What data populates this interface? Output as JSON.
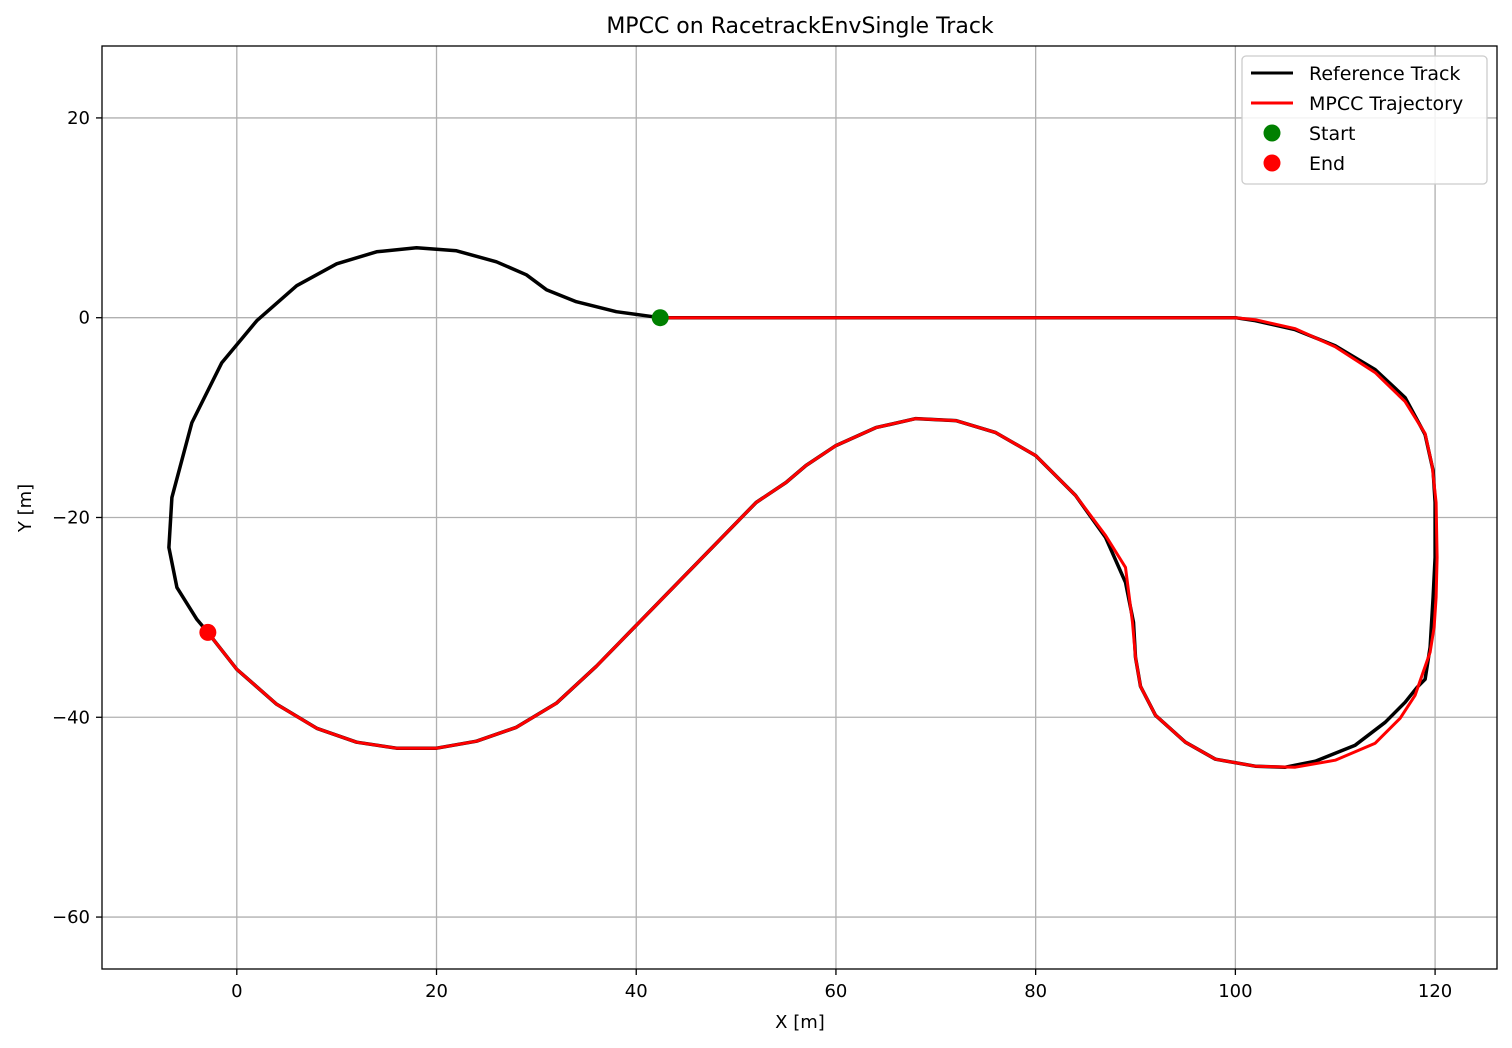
{
  "chart_data": {
    "type": "line",
    "title": "MPCC on RacetrackEnvSingle Track",
    "xlabel": "X [m]",
    "ylabel": "Y [m]",
    "xlim": [
      -13.5,
      126.2
    ],
    "ylim": [
      -65.2,
      27.2
    ],
    "xticks": [
      0,
      20,
      40,
      60,
      80,
      100,
      120
    ],
    "yticks": [
      20,
      0,
      -20,
      -40,
      -60
    ],
    "grid": true,
    "legend_position": "top-right",
    "colors": {
      "reference": "#000000",
      "trajectory": "#ff0000",
      "start": "#008000",
      "end": "#ff0000",
      "grid": "#b0b0b0"
    },
    "series": [
      {
        "name": "Reference Track",
        "style": "line",
        "x": [
          42.4,
          38,
          34,
          31,
          29,
          26,
          22,
          18,
          14,
          10,
          6,
          2,
          -1.5,
          -4.5,
          -6.5,
          -6.8,
          -6,
          -4,
          -2.9,
          0,
          4,
          8,
          12,
          16,
          20,
          24,
          28,
          32,
          36,
          40,
          44,
          48,
          52,
          55,
          57,
          60,
          64,
          68,
          72,
          76,
          80,
          84,
          87,
          89,
          89.8,
          90,
          90.5,
          92,
          95,
          98,
          102,
          105,
          108,
          112,
          115,
          117,
          118.2,
          119,
          119.5,
          119.8,
          120,
          120,
          119.8,
          119,
          117,
          114,
          110,
          106,
          102,
          100,
          90,
          80,
          70,
          60,
          50,
          42.4
        ],
        "y": [
          0,
          0.6,
          1.6,
          2.8,
          4.3,
          5.6,
          6.7,
          7,
          6.6,
          5.4,
          3.2,
          -0.3,
          -4.5,
          -10.5,
          -18,
          -23,
          -27,
          -30.2,
          -31.5,
          -35.2,
          -38.7,
          -41.1,
          -42.5,
          -43.1,
          -43.1,
          -42.4,
          -41,
          -38.6,
          -34.9,
          -30.8,
          -26.7,
          -22.6,
          -18.5,
          -16.5,
          -14.8,
          -12.8,
          -11,
          -10.1,
          -10.3,
          -11.5,
          -13.8,
          -17.8,
          -22,
          -26.5,
          -30.5,
          -34,
          -36.9,
          -39.8,
          -42.5,
          -44.2,
          -44.9,
          -45,
          -44.4,
          -42.8,
          -40.5,
          -38.5,
          -37,
          -36.2,
          -33,
          -28,
          -24,
          -18.5,
          -15.3,
          -11.7,
          -8,
          -5.2,
          -2.8,
          -1.2,
          -0.3,
          0,
          0,
          0,
          0,
          0,
          0,
          0
        ]
      },
      {
        "name": "MPCC Trajectory",
        "style": "line",
        "x": [
          42.4,
          50,
          60,
          70,
          80,
          90,
          100,
          102,
          106,
          110,
          114,
          117,
          119,
          119.7,
          120.1,
          120.2,
          120.1,
          119.9,
          119.5,
          118.8,
          118,
          116.5,
          114,
          110,
          106,
          102,
          98,
          95,
          92,
          90.5,
          90,
          89.7,
          89,
          87,
          84,
          80,
          76,
          72,
          68,
          64,
          60,
          57,
          55,
          52,
          48,
          44,
          40,
          36,
          32,
          28,
          24,
          20,
          16,
          12,
          8,
          4,
          0,
          -2.9
        ],
        "y": [
          0,
          0,
          0,
          0,
          0,
          0,
          0,
          -0.2,
          -1.1,
          -2.9,
          -5.5,
          -8.4,
          -11.6,
          -14.8,
          -18.5,
          -24,
          -28,
          -31,
          -33.5,
          -35.5,
          -37.8,
          -40.1,
          -42.6,
          -44.3,
          -45,
          -44.9,
          -44.2,
          -42.5,
          -39.8,
          -36.9,
          -34,
          -30.5,
          -25,
          -21.8,
          -17.8,
          -13.8,
          -11.5,
          -10.3,
          -10.1,
          -11,
          -12.8,
          -14.8,
          -16.5,
          -18.5,
          -22.6,
          -26.7,
          -30.8,
          -34.9,
          -38.6,
          -41,
          -42.4,
          -43.1,
          -43.1,
          -42.5,
          -41.1,
          -38.7,
          -35.2,
          -31.5
        ]
      },
      {
        "name": "Start",
        "style": "marker",
        "x": [
          42.4
        ],
        "y": [
          0
        ]
      },
      {
        "name": "End",
        "style": "marker",
        "x": [
          -2.9
        ],
        "y": [
          -31.5
        ]
      }
    ]
  }
}
